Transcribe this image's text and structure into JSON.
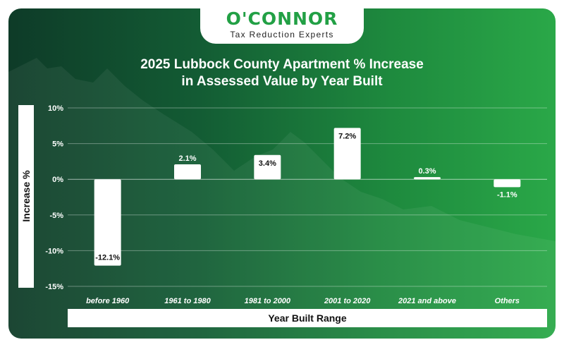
{
  "brand": {
    "name": "O'CONNOR",
    "tagline": "Tax Reduction Experts"
  },
  "chart_data": {
    "type": "bar",
    "title_line1": "2025 Lubbock County Apartment % Increase",
    "title_line2": "in Assessed Value by Year Built",
    "xlabel": "Year Built Range",
    "ylabel": "Increase %",
    "categories": [
      "before 1960",
      "1961 to 1980",
      "1981 to 2000",
      "2001 to 2020",
      "2021 and above",
      "Others"
    ],
    "values": [
      -12.1,
      2.1,
      3.4,
      7.2,
      0.3,
      -1.1
    ],
    "value_labels": [
      "-12.1%",
      "2.1%",
      "3.4%",
      "7.2%",
      "0.3%",
      "-1.1%"
    ],
    "ylim": [
      -15,
      10
    ],
    "yticks": [
      10,
      5,
      0,
      -5,
      -10,
      -15
    ],
    "ytick_labels": [
      "10%",
      "5%",
      "0%",
      "-5%",
      "-10%",
      "-15%"
    ],
    "grid": true,
    "legend": "none",
    "bar_color": "#ffffff",
    "background_colors": [
      "#0e3b28",
      "#2aa848"
    ]
  }
}
